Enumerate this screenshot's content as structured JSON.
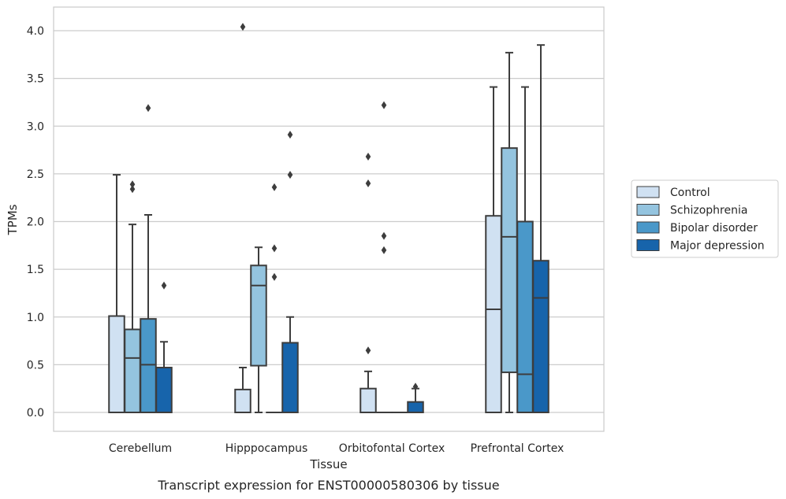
{
  "chart_data": {
    "type": "box",
    "xlabel": "Tissue",
    "ylabel": "TPMs",
    "caption": "Transcript expression for ENST00000580306 by tissue",
    "ylim": [
      -0.2,
      4.25
    ],
    "yticks": [
      "0.0",
      "0.5",
      "1.0",
      "1.5",
      "2.0",
      "2.5",
      "3.0",
      "3.5",
      "4.0"
    ],
    "grid": "horizontal",
    "legend_position": "right",
    "categories": [
      "Cerebellum",
      "Hipppocampus",
      "Orbitofontal Cortex",
      "Prefrontal Cortex"
    ],
    "series": [
      {
        "name": "Control",
        "color": "#d0e1f2",
        "boxes": [
          {
            "min": 0.0,
            "q1": 0.0,
            "median": 0.0,
            "q3": 1.01,
            "max": 2.49,
            "outliers": []
          },
          {
            "min": 0.0,
            "q1": 0.0,
            "median": 0.0,
            "q3": 0.24,
            "max": 0.47,
            "outliers": [
              4.04
            ]
          },
          {
            "min": 0.0,
            "q1": 0.0,
            "median": 0.0,
            "q3": 0.25,
            "max": 0.43,
            "outliers": [
              0.65,
              2.4,
              2.68
            ]
          },
          {
            "min": 0.0,
            "q1": 0.0,
            "median": 1.08,
            "q3": 2.06,
            "max": 3.41,
            "outliers": []
          }
        ]
      },
      {
        "name": "Schizophrenia",
        "color": "#94c4df",
        "boxes": [
          {
            "min": 0.0,
            "q1": 0.0,
            "median": 0.57,
            "q3": 0.87,
            "max": 1.97,
            "outliers": [
              2.34,
              2.39
            ]
          },
          {
            "min": 0.0,
            "q1": 0.49,
            "median": 1.33,
            "q3": 1.54,
            "max": 1.73,
            "outliers": []
          },
          {
            "min": 0.0,
            "q1": 0.0,
            "median": 0.0,
            "q3": 0.0,
            "max": 0.0,
            "outliers": [
              1.7,
              1.85,
              3.22
            ]
          },
          {
            "min": 0.0,
            "q1": 0.42,
            "median": 1.84,
            "q3": 2.77,
            "max": 3.77,
            "outliers": []
          }
        ]
      },
      {
        "name": "Bipolar disorder",
        "color": "#4a98c9",
        "boxes": [
          {
            "min": 0.0,
            "q1": 0.0,
            "median": 0.5,
            "q3": 0.98,
            "max": 2.07,
            "outliers": [
              3.19
            ]
          },
          {
            "min": 0.0,
            "q1": 0.0,
            "median": 0.0,
            "q3": 0.0,
            "max": 0.0,
            "outliers": [
              1.42,
              1.72,
              2.36
            ]
          },
          {
            "min": 0.0,
            "q1": 0.0,
            "median": 0.0,
            "q3": 0.0,
            "max": 0.0,
            "outliers": []
          },
          {
            "min": 0.0,
            "q1": 0.0,
            "median": 0.4,
            "q3": 2.0,
            "max": 3.41,
            "outliers": []
          }
        ]
      },
      {
        "name": "Major depression",
        "color": "#1764ab",
        "boxes": [
          {
            "min": 0.0,
            "q1": 0.0,
            "median": 0.0,
            "q3": 0.47,
            "max": 0.74,
            "outliers": [
              1.33
            ]
          },
          {
            "min": 0.0,
            "q1": 0.0,
            "median": 0.0,
            "q3": 0.73,
            "max": 1.0,
            "outliers": [
              2.49,
              2.91
            ]
          },
          {
            "min": 0.0,
            "q1": 0.0,
            "median": 0.0,
            "q3": 0.11,
            "max": 0.25,
            "outliers": [
              0.27
            ]
          },
          {
            "min": 0.0,
            "q1": 0.0,
            "median": 1.2,
            "q3": 1.59,
            "max": 3.85,
            "outliers": []
          }
        ]
      }
    ]
  }
}
